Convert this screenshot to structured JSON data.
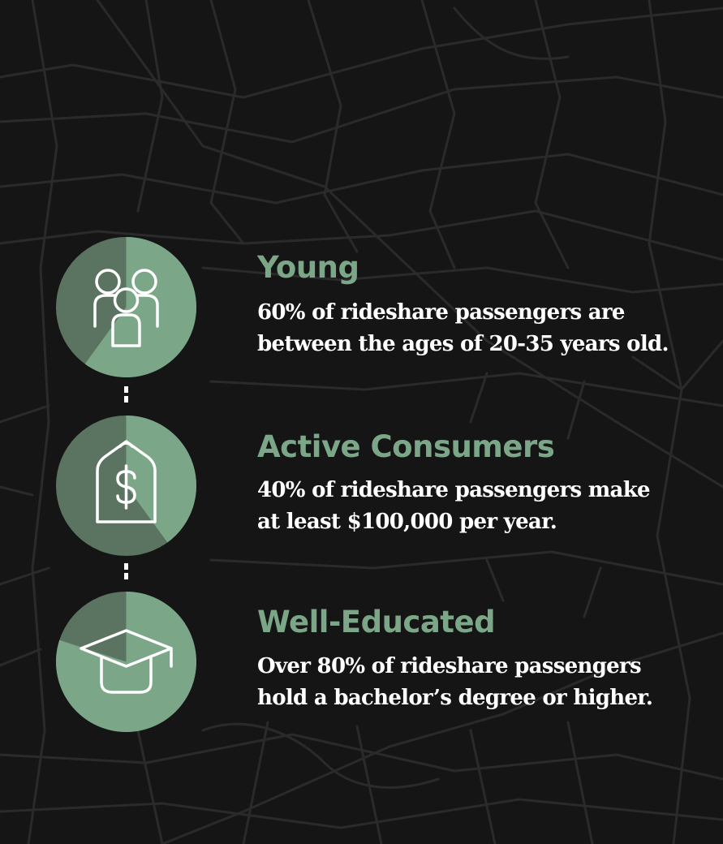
{
  "colors": {
    "background": "#161516",
    "map_lines": "#2b2a2b",
    "accent_light": "#7ba788",
    "accent_dark": "#5b7462",
    "text": "#ffffff"
  },
  "stats": [
    {
      "title": "Young",
      "lines": [
        "60% of rideshare passengers are",
        "between the ages of 20-35 years old."
      ],
      "percent": 60,
      "icon": "people-group-icon"
    },
    {
      "title": "Active Consumers",
      "lines": [
        "40% of rideshare passengers make",
        "at least $100,000 per year."
      ],
      "percent": 40,
      "icon": "price-tag-dollar-icon"
    },
    {
      "title": "Well-Educated",
      "lines": [
        "Over 80% of rideshare passengers",
        "hold a bachelor’s degree or higher."
      ],
      "percent": 80,
      "icon": "graduation-cap-icon"
    }
  ]
}
